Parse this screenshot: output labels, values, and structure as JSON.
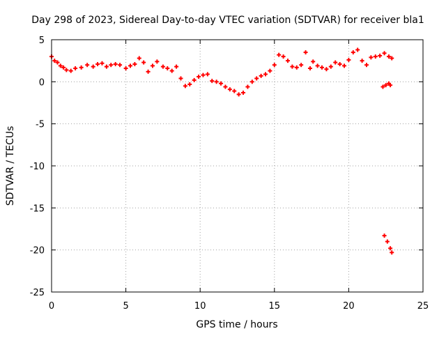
{
  "chart_data": {
    "type": "scatter",
    "title": "Day 298 of 2023, Sidereal Day-to-day VTEC variation (SDTVAR) for receiver bla1",
    "xlabel": "GPS time / hours",
    "ylabel": "SDTVAR / TECUs",
    "xlim": [
      0,
      25
    ],
    "ylim": [
      -25,
      5
    ],
    "xticks": [
      0,
      5,
      10,
      15,
      20,
      25
    ],
    "yticks": [
      -25,
      -20,
      -15,
      -10,
      -5,
      0,
      5
    ],
    "xtick_labels": [
      "0",
      "5",
      "10",
      "15",
      "20",
      "25"
    ],
    "ytick_labels": [
      "-25",
      "-20",
      "-15",
      "-10",
      "-5",
      "0",
      "5"
    ],
    "grid": true,
    "series": [
      {
        "name": "SDTVAR",
        "color": "#ff0000",
        "marker": "plus",
        "x": [
          0.0,
          0.2,
          0.4,
          0.6,
          0.8,
          1.0,
          1.3,
          1.6,
          2.0,
          2.4,
          2.8,
          3.1,
          3.4,
          3.7,
          4.0,
          4.3,
          4.6,
          5.0,
          5.3,
          5.6,
          5.9,
          6.2,
          6.5,
          6.8,
          7.1,
          7.5,
          7.8,
          8.1,
          8.4,
          8.7,
          9.0,
          9.3,
          9.6,
          9.9,
          10.2,
          10.5,
          10.8,
          11.1,
          11.4,
          11.7,
          12.0,
          12.3,
          12.6,
          12.9,
          13.2,
          13.5,
          13.8,
          14.1,
          14.4,
          14.7,
          15.0,
          15.3,
          15.6,
          15.9,
          16.2,
          16.5,
          16.8,
          17.1,
          17.4,
          17.6,
          17.9,
          18.2,
          18.5,
          18.8,
          19.1,
          19.4,
          19.7,
          20.0,
          20.3,
          20.6,
          20.9,
          21.2,
          21.5,
          21.8,
          22.1,
          22.4,
          22.7,
          22.9,
          22.3,
          22.5,
          22.7,
          22.8,
          22.4,
          22.6,
          22.8,
          22.9
        ],
        "y": [
          3.0,
          2.5,
          2.3,
          1.9,
          1.7,
          1.4,
          1.3,
          1.6,
          1.7,
          2.0,
          1.8,
          2.1,
          2.2,
          1.8,
          2.0,
          2.1,
          2.0,
          1.6,
          1.9,
          2.1,
          2.8,
          2.3,
          1.2,
          1.9,
          2.4,
          1.8,
          1.6,
          1.3,
          1.8,
          0.4,
          -0.5,
          -0.3,
          0.2,
          0.6,
          0.8,
          0.9,
          0.1,
          0.0,
          -0.2,
          -0.6,
          -0.9,
          -1.1,
          -1.5,
          -1.3,
          -0.6,
          0.0,
          0.4,
          0.7,
          0.9,
          1.3,
          2.0,
          3.2,
          3.0,
          2.5,
          1.8,
          1.7,
          2.0,
          3.5,
          1.6,
          2.4,
          1.9,
          1.7,
          1.5,
          1.8,
          2.3,
          2.1,
          1.9,
          2.6,
          3.5,
          3.8,
          2.5,
          2.0,
          2.9,
          3.0,
          3.1,
          3.4,
          3.0,
          2.8,
          -0.6,
          -0.4,
          -0.2,
          -0.4,
          -18.3,
          -19.0,
          -19.8,
          -20.3
        ]
      }
    ]
  }
}
